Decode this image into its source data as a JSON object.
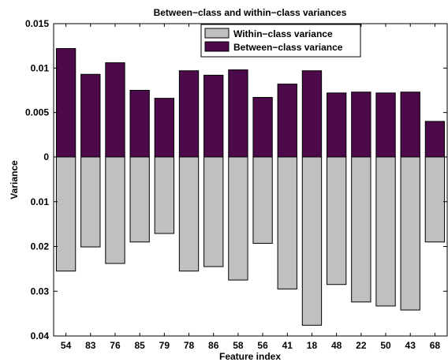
{
  "chart_data": {
    "type": "bar",
    "title": "Between−class and within−class variances",
    "xlabel": "Feature index",
    "ylabel": "Variance",
    "categories": [
      "54",
      "83",
      "76",
      "85",
      "79",
      "78",
      "86",
      "58",
      "56",
      "41",
      "18",
      "48",
      "22",
      "50",
      "43",
      "68"
    ],
    "series": [
      {
        "name": "Within−class variance",
        "direction": "down",
        "color": "#c0c0c0",
        "values": [
          0.0255,
          0.0201,
          0.0238,
          0.019,
          0.0171,
          0.0255,
          0.0245,
          0.0275,
          0.0193,
          0.0295,
          0.0376,
          0.0285,
          0.0324,
          0.0333,
          0.0342,
          0.019
        ]
      },
      {
        "name": "Between−class variance",
        "direction": "up",
        "color": "#4d0a4b",
        "values": [
          0.0122,
          0.0093,
          0.0106,
          0.0075,
          0.0066,
          0.0097,
          0.0092,
          0.0098,
          0.0067,
          0.0082,
          0.0097,
          0.0072,
          0.0073,
          0.0072,
          0.0073,
          0.004
        ]
      }
    ],
    "yticks_up": [
      "0.015",
      "0.01",
      "0.005",
      "0"
    ],
    "yticks_down": [
      "0.01",
      "0.02",
      "0.03",
      "0.04"
    ],
    "ylim_up": [
      0,
      0.015
    ],
    "ylim_down": [
      0,
      0.04
    ],
    "legend": "top-right"
  }
}
